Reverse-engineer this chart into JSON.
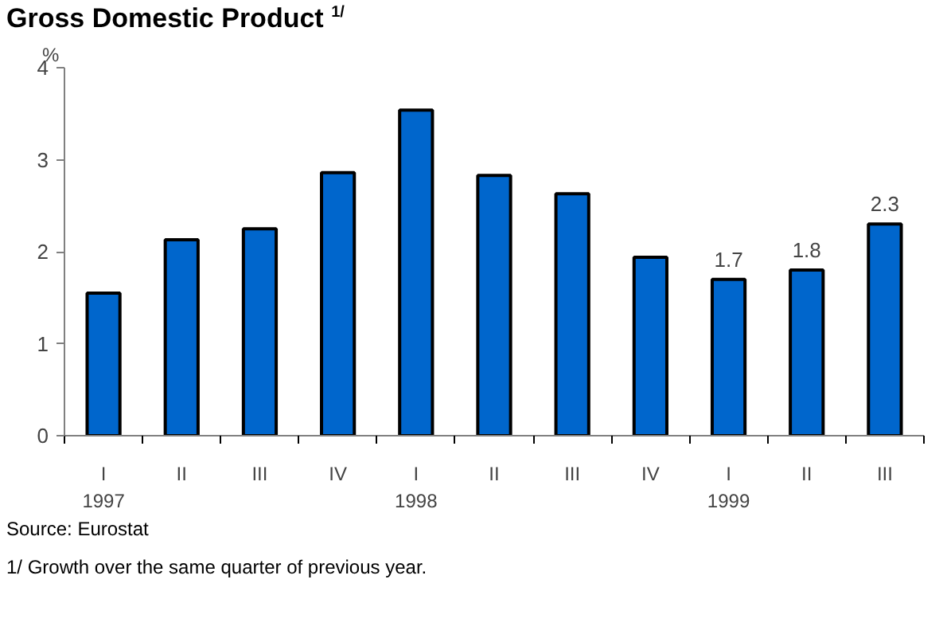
{
  "chart_data": {
    "type": "bar",
    "title": "Gross Domestic Product $^{1/}$",
    "ylabel": "%",
    "categories": [
      "I\n1997",
      "II",
      "III",
      "IV",
      "I\n1998",
      "II",
      "III",
      "IV",
      "I\n1999",
      "II",
      "III"
    ],
    "values": [
      1.55,
      2.13,
      2.25,
      2.86,
      3.54,
      2.83,
      2.63,
      1.94,
      1.7,
      1.8,
      2.3
    ],
    "value_labels": [
      null,
      null,
      null,
      null,
      null,
      null,
      null,
      null,
      "1.7",
      "1.8",
      "2.3"
    ],
    "color": "#0066cc",
    "ylim": [
      0,
      4
    ],
    "yticks": [
      0,
      1,
      2,
      3,
      4
    ],
    "grid": false,
    "annotations": [
      "Source: Eurostat",
      "1/ Growth over the same quarter of previous year."
    ]
  }
}
